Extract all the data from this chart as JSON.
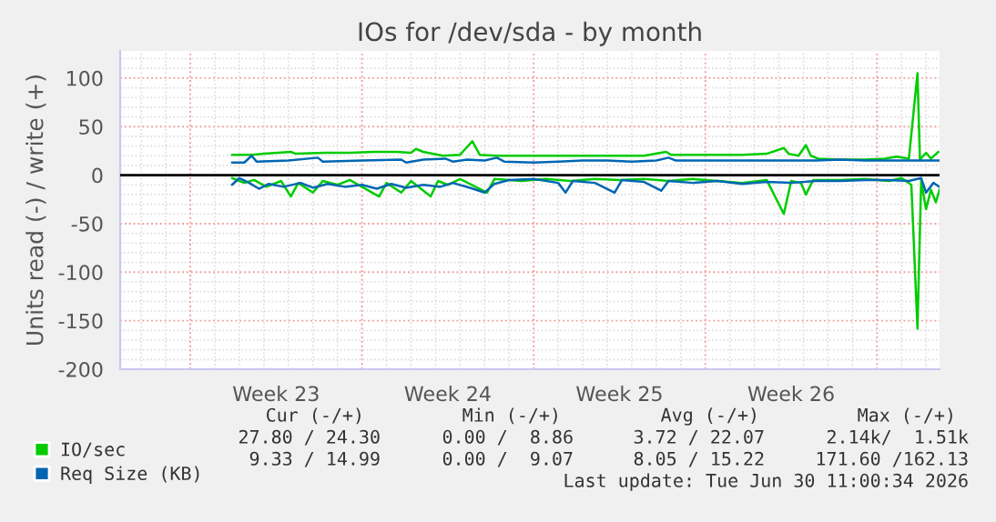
{
  "chart_data": {
    "type": "line",
    "title": "IOs for /dev/sda - by month",
    "ylabel": "Units read (-) / write (+)",
    "xlim": [
      "2026-05-29T03:22",
      "2026-07-01T13:12"
    ],
    "ylim": [
      -200,
      128
    ],
    "xticks": [
      {
        "value": "2026-06-01",
        "label": null
      },
      {
        "value": "2026-06-04T12:00",
        "label": "Week 23"
      },
      {
        "value": "2026-06-08",
        "label": null
      },
      {
        "value": "2026-06-11T12:00",
        "label": "Week 24"
      },
      {
        "value": "2026-06-15",
        "label": null
      },
      {
        "value": "2026-06-18T12:00",
        "label": "Week 25"
      },
      {
        "value": "2026-06-22",
        "label": null
      },
      {
        "value": "2026-06-25T12:00",
        "label": "Week 26"
      },
      {
        "value": "2026-06-29",
        "label": null
      }
    ],
    "yticks": [
      -200,
      -150,
      -100,
      -50,
      0,
      50,
      100
    ],
    "grid": true,
    "legend": "bottom",
    "marker": "none",
    "line_style": "solid",
    "ref_lines": [
      {
        "axis": "y",
        "value": 0,
        "label": null,
        "color": "#000000"
      }
    ],
    "series": [
      {
        "name": "IO/sec",
        "color": "#00cc00",
        "x": [
          "2026-06-02T16:48",
          "2026-06-03T12:00",
          "2026-06-04T00:00",
          "2026-06-05T02:24",
          "2026-06-05T07:12",
          "2026-06-06T12:00",
          "2026-06-07T12:00",
          "2026-06-08T12:00",
          "2026-06-09T09:36",
          "2026-06-10T00:00",
          "2026-06-10T04:48",
          "2026-06-10T12:00",
          "2026-06-11T07:12",
          "2026-06-12T00:00",
          "2026-06-12T12:00",
          "2026-06-12T19:12",
          "2026-06-13T12:00",
          "2026-06-14T12:00",
          "2026-06-15T12:00",
          "2026-06-16T12:00",
          "2026-06-17T12:00",
          "2026-06-18T12:00",
          "2026-06-19T12:00",
          "2026-06-20T09:36",
          "2026-06-20T14:24",
          "2026-06-21T12:00",
          "2026-06-22T12:00",
          "2026-06-23T12:00",
          "2026-06-24T12:00",
          "2026-06-25T04:48",
          "2026-06-25T09:36",
          "2026-06-25T19:12",
          "2026-06-26T02:24",
          "2026-06-26T07:12",
          "2026-06-26T14:24",
          "2026-06-27T12:00",
          "2026-06-28T12:00",
          "2026-06-29T07:12",
          "2026-06-29T19:12",
          "2026-06-30T07:12",
          "2026-06-30T15:36",
          "2026-06-30T18:00",
          "2026-07-01T00:00",
          "2026-07-01T04:48",
          "2026-07-01T12:00"
        ],
        "values": [
          21,
          21,
          22,
          24,
          22,
          23,
          23,
          24,
          24,
          23,
          27,
          24,
          20,
          21,
          35,
          21,
          20,
          20,
          20,
          20,
          20,
          20,
          20,
          24,
          21,
          21,
          21,
          21,
          22,
          28,
          22,
          20,
          31,
          20,
          17,
          16,
          16,
          17,
          19,
          17,
          105,
          16,
          23,
          17,
          24
        ]
      },
      {
        "color": "#00cc00",
        "x": [
          "2026-06-02T16:48",
          "2026-06-03T04:48",
          "2026-06-03T14:24",
          "2026-06-04T02:24",
          "2026-06-04T16:48",
          "2026-06-05T02:24",
          "2026-06-05T09:36",
          "2026-06-06T00:00",
          "2026-06-06T09:36",
          "2026-06-07T00:00",
          "2026-06-07T12:00",
          "2026-06-08T16:48",
          "2026-06-09T00:00",
          "2026-06-09T14:24",
          "2026-06-10T00:00",
          "2026-06-10T19:12",
          "2026-06-11T02:24",
          "2026-06-11T12:00",
          "2026-06-12T00:00",
          "2026-06-13T02:24",
          "2026-06-13T09:36",
          "2026-06-14T12:00",
          "2026-06-15T12:00",
          "2026-06-16T12:00",
          "2026-06-17T12:00",
          "2026-06-18T12:00",
          "2026-06-19T12:00",
          "2026-06-20T12:00",
          "2026-06-21T12:00",
          "2026-06-22T12:00",
          "2026-06-23T12:00",
          "2026-06-24T12:00",
          "2026-06-25T04:48",
          "2026-06-25T12:00",
          "2026-06-25T21:36",
          "2026-06-26T02:24",
          "2026-06-26T09:36",
          "2026-06-27T12:00",
          "2026-06-28T12:00",
          "2026-06-29T12:00",
          "2026-06-30T00:00",
          "2026-06-30T09:36",
          "2026-06-30T15:36",
          "2026-06-30T19:12",
          "2026-07-01T00:00",
          "2026-07-01T04:48",
          "2026-07-01T09:36",
          "2026-07-01T13:12"
        ],
        "values": [
          -3,
          -8,
          -5,
          -12,
          -6,
          -22,
          -8,
          -18,
          -6,
          -10,
          -5,
          -22,
          -8,
          -18,
          -6,
          -22,
          -6,
          -10,
          -4,
          -18,
          -4,
          -6,
          -4,
          -6,
          -4,
          -5,
          -4,
          -6,
          -4,
          -6,
          -8,
          -5,
          -40,
          -6,
          -8,
          -20,
          -5,
          -5,
          -4,
          -6,
          -3,
          -10,
          -158,
          -6,
          -35,
          -15,
          -28,
          -15
        ]
      },
      {
        "name": "Req Size (KB)",
        "color": "#0066b3",
        "x": [
          "2026-06-02T16:48",
          "2026-06-03T04:48",
          "2026-06-03T12:00",
          "2026-06-03T16:48",
          "2026-06-05T00:00",
          "2026-06-06T04:48",
          "2026-06-06T09:36",
          "2026-06-08T00:00",
          "2026-06-09T14:24",
          "2026-06-09T19:12",
          "2026-06-10T12:00",
          "2026-06-11T09:36",
          "2026-06-11T16:48",
          "2026-06-12T07:12",
          "2026-06-13T00:00",
          "2026-06-13T12:00",
          "2026-06-13T19:12",
          "2026-06-15T00:00",
          "2026-06-16T00:00",
          "2026-06-17T00:00",
          "2026-06-18T00:00",
          "2026-06-19T00:00",
          "2026-06-20T00:00",
          "2026-06-20T12:00",
          "2026-06-20T19:12",
          "2026-06-22T00:00",
          "2026-06-23T00:00",
          "2026-06-24T00:00",
          "2026-06-25T00:00",
          "2026-06-26T12:00",
          "2026-06-27T12:00",
          "2026-06-28T12:00",
          "2026-06-29T12:00",
          "2026-06-30T12:00",
          "2026-07-01T13:12"
        ],
        "values": [
          13,
          13,
          20,
          14,
          15,
          18,
          14,
          15,
          16,
          13,
          16,
          17,
          14,
          16,
          15,
          18,
          14,
          13,
          14,
          15,
          15,
          14,
          15,
          18,
          15,
          15,
          15,
          15,
          15,
          15,
          16,
          15,
          15,
          15,
          15
        ]
      },
      {
        "color": "#0066b3",
        "x": [
          "2026-06-02T16:48",
          "2026-06-03T00:00",
          "2026-06-03T09:36",
          "2026-06-03T19:12",
          "2026-06-04T04:48",
          "2026-06-04T19:12",
          "2026-06-05T12:00",
          "2026-06-06T00:00",
          "2026-06-06T14:24",
          "2026-06-07T07:12",
          "2026-06-08T00:00",
          "2026-06-08T14:24",
          "2026-06-09T04:48",
          "2026-06-09T19:12",
          "2026-06-10T12:00",
          "2026-06-11T04:48",
          "2026-06-11T16:48",
          "2026-06-12T09:36",
          "2026-06-13T00:00",
          "2026-06-13T09:36",
          "2026-06-14T00:00",
          "2026-06-15T00:00",
          "2026-06-16T00:00",
          "2026-06-16T07:12",
          "2026-06-16T14:24",
          "2026-06-17T12:00",
          "2026-06-18T07:12",
          "2026-06-18T14:24",
          "2026-06-19T12:00",
          "2026-06-20T04:48",
          "2026-06-20T12:00",
          "2026-06-21T12:00",
          "2026-06-22T12:00",
          "2026-06-23T12:00",
          "2026-06-24T12:00",
          "2026-06-25T12:00",
          "2026-06-26T12:00",
          "2026-06-27T12:00",
          "2026-06-28T12:00",
          "2026-06-29T12:00",
          "2026-06-30T07:12",
          "2026-06-30T19:12",
          "2026-07-01T00:00",
          "2026-07-01T07:12",
          "2026-07-01T13:12"
        ],
        "values": [
          -10,
          -3,
          -8,
          -14,
          -9,
          -12,
          -8,
          -13,
          -9,
          -12,
          -10,
          -14,
          -9,
          -13,
          -10,
          -12,
          -8,
          -13,
          -18,
          -9,
          -5,
          -4,
          -8,
          -18,
          -6,
          -8,
          -18,
          -5,
          -7,
          -16,
          -6,
          -8,
          -6,
          -9,
          -7,
          -8,
          -6,
          -6,
          -5,
          -5,
          -6,
          -3,
          -18,
          -8,
          -12
        ]
      }
    ],
    "annotations": [
      "Cur (-/+)",
      "Min (-/+)",
      "Avg (-/+)",
      "Max (-/+)",
      "27.80 / 24.30",
      "0.00 /  8.86",
      "3.72 / 22.07",
      "2.14k/  1.51k",
      "9.33 / 14.99",
      "0.00 /  9.07",
      "8.05 / 15.22",
      "171.60 /162.13",
      "Last update: Tue Jun 30 11:00:34 2026"
    ]
  }
}
